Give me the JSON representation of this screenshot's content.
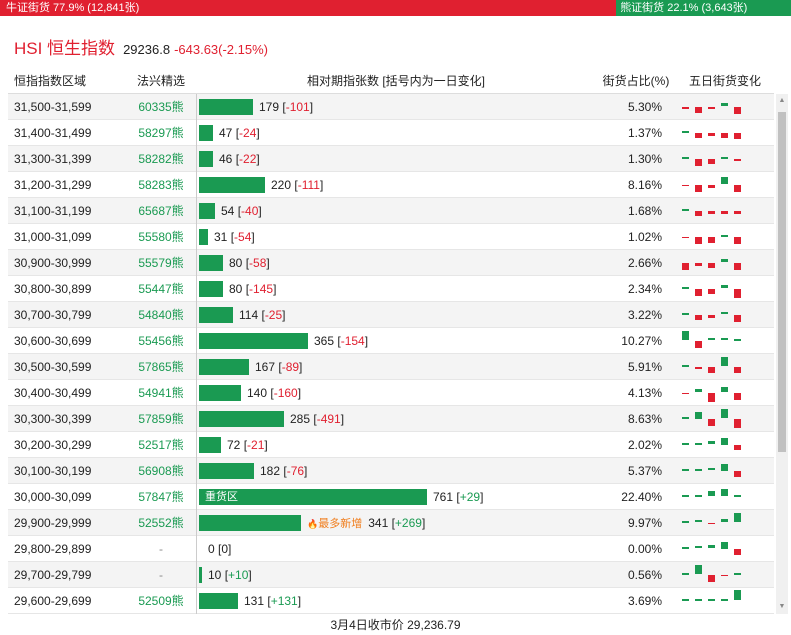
{
  "ratio": {
    "bull_label": "牛证街货 77.9% (12,841张)",
    "bull_share": 0.779,
    "bear_label": "熊证街货 22.1% (3,643张)",
    "bull_color": "#e02030",
    "bear_color": "#1a9a52"
  },
  "index": {
    "name": "HSI 恒生指数",
    "price": "29236.8",
    "change": "-643.63(-2.15%)"
  },
  "headers": {
    "range": "恒指指数区域",
    "code": "法兴精选",
    "count": "相对期指张数 [括号内为一日变化]",
    "pct": "街货占比(%)",
    "five_day": "五日街货变化"
  },
  "rows": [
    {
      "range": "31,500-31,599",
      "code": "60335熊",
      "count": "179",
      "change": "-101",
      "pct": "5.30%",
      "five": [
        -2,
        -5,
        -2,
        3,
        -6
      ]
    },
    {
      "range": "31,400-31,499",
      "code": "58297熊",
      "count": "47",
      "change": "-24",
      "pct": "1.37%",
      "five": [
        0,
        -4,
        -3,
        -4,
        -5
      ]
    },
    {
      "range": "31,300-31,399",
      "code": "58282熊",
      "count": "46",
      "change": "-22",
      "pct": "1.30%",
      "five": [
        0,
        -6,
        -4,
        1,
        -2
      ]
    },
    {
      "range": "31,200-31,299",
      "code": "58283熊",
      "count": "220",
      "change": "-111",
      "pct": "8.16%",
      "five": [
        -1,
        -6,
        -3,
        6,
        -6
      ]
    },
    {
      "range": "31,100-31,199",
      "code": "65687熊",
      "count": "54",
      "change": "-40",
      "pct": "1.68%",
      "five": [
        0,
        -4,
        -3,
        -3,
        -3
      ]
    },
    {
      "range": "31,000-31,099",
      "code": "55580熊",
      "count": "31",
      "change": "-54",
      "pct": "1.02%",
      "five": [
        -1,
        -6,
        -5,
        1,
        -6
      ]
    },
    {
      "range": "30,900-30,999",
      "code": "55579熊",
      "count": "80",
      "change": "-58",
      "pct": "2.66%",
      "five": [
        -6,
        -3,
        -4,
        3,
        -6
      ]
    },
    {
      "range": "30,800-30,899",
      "code": "55447熊",
      "count": "80",
      "change": "-145",
      "pct": "2.34%",
      "five": [
        0,
        -6,
        -4,
        3,
        -7
      ]
    },
    {
      "range": "30,700-30,799",
      "code": "54840熊",
      "count": "114",
      "change": "-25",
      "pct": "3.22%",
      "five": [
        0,
        -4,
        -3,
        2,
        -6
      ]
    },
    {
      "range": "30,600-30,699",
      "code": "55456熊",
      "count": "365",
      "change": "-154",
      "pct": "10.27%",
      "five": [
        7,
        -6,
        2,
        2,
        1
      ]
    },
    {
      "range": "30,500-30,599",
      "code": "57865熊",
      "count": "167",
      "change": "-89",
      "pct": "5.91%",
      "five": [
        0,
        -2,
        -5,
        7,
        -5
      ]
    },
    {
      "range": "30,400-30,499",
      "code": "54941熊",
      "count": "140",
      "change": "-160",
      "pct": "4.13%",
      "five": [
        -1,
        3,
        -7,
        4,
        -6
      ]
    },
    {
      "range": "30,300-30,399",
      "code": "57859熊",
      "count": "285",
      "change": "-491",
      "pct": "8.63%",
      "five": [
        0,
        5,
        -6,
        7,
        -7
      ]
    },
    {
      "range": "30,200-30,299",
      "code": "52517熊",
      "count": "72",
      "change": "-21",
      "pct": "2.02%",
      "five": [
        1,
        1,
        3,
        5,
        -4
      ]
    },
    {
      "range": "30,100-30,199",
      "code": "56908熊",
      "count": "182",
      "change": "-76",
      "pct": "5.37%",
      "five": [
        1,
        1,
        2,
        5,
        -5
      ]
    },
    {
      "range": "30,000-30,099",
      "code": "57847熊",
      "count": "761",
      "change": "+29",
      "pct": "22.40%",
      "five": [
        1,
        1,
        4,
        6,
        1
      ],
      "bar_tag": "重货区"
    },
    {
      "range": "29,900-29,999",
      "code": "52552熊",
      "count": "341",
      "change": "+269",
      "pct": "9.97%",
      "five": [
        1,
        2,
        -1,
        3,
        7
      ],
      "new_tag": "最多新增"
    },
    {
      "range": "29,800-29,899",
      "code": "-",
      "count": "0",
      "change": "0",
      "pct": "0.00%",
      "five": [
        1,
        2,
        3,
        5,
        -5
      ]
    },
    {
      "range": "29,700-29,799",
      "code": "-",
      "count": "10",
      "change": "+10",
      "pct": "0.56%",
      "five": [
        0,
        7,
        -6,
        -1,
        1
      ]
    },
    {
      "range": "29,600-29,699",
      "code": "52509熊",
      "count": "131",
      "change": "+131",
      "pct": "3.69%",
      "five": [
        0,
        0,
        0,
        0,
        8
      ]
    }
  ],
  "scale_max": 761,
  "footer": "3月4日收市价 29,236.79"
}
